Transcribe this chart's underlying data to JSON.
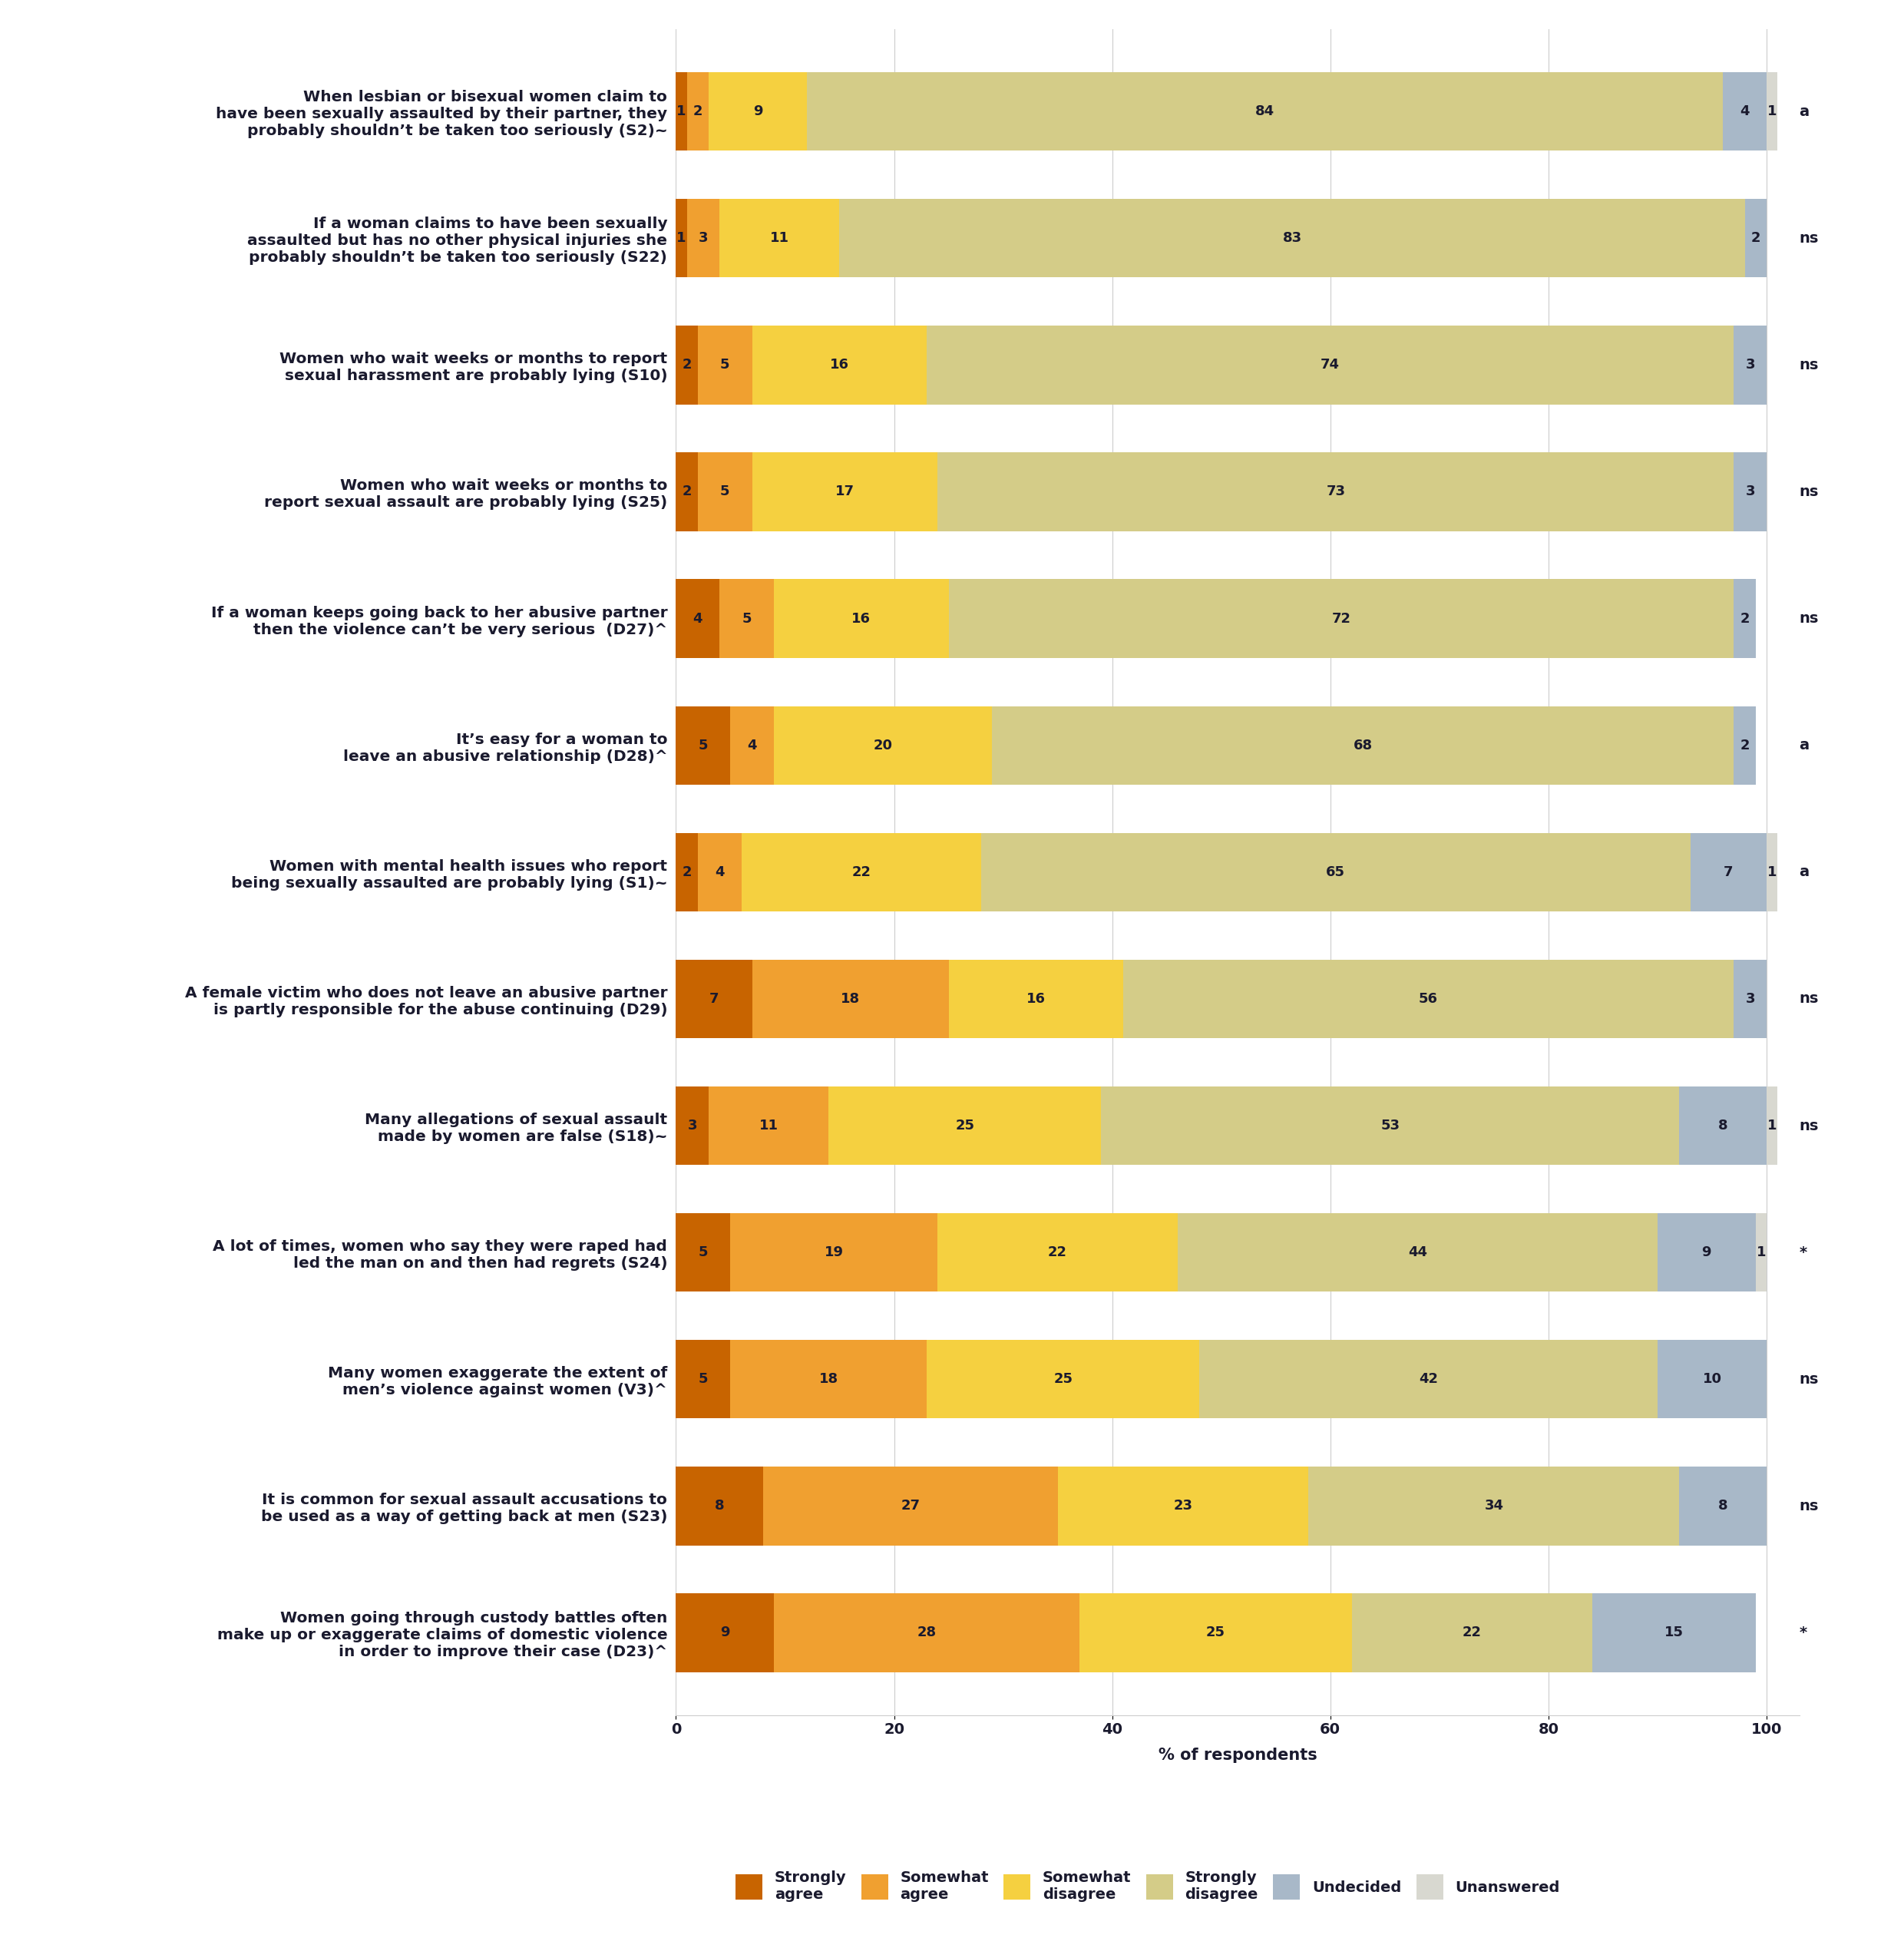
{
  "questions": [
    "When lesbian or bisexual women claim to\nhave been sexually assaulted by their partner, they\nprobably shouldn’t be taken too seriously (S2)~",
    "If a woman claims to have been sexually\nassaulted but has no other physical injuries she\nprobably shouldn’t be taken too seriously (S22)",
    "Women who wait weeks or months to report\nsexual harassment are probably lying (S10)",
    "Women who wait weeks or months to\nreport sexual assault are probably lying (S25)",
    "If a woman keeps going back to her abusive partner\nthen the violence can’t be very serious  (D27)^",
    "It’s easy for a woman to\nleave an abusive relationship (D28)^",
    "Women with mental health issues who report\nbeing sexually assaulted are probably lying (S1)~",
    "A female victim who does not leave an abusive partner\nis partly responsible for the abuse continuing (D29)",
    "Many allegations of sexual assault\nmade by women are false (S18)~",
    "A lot of times, women who say they were raped had\nled the man on and then had regrets (S24)",
    "Many women exaggerate the extent of\nmen’s violence against women (V3)^",
    "It is common for sexual assault accusations to\nbe used as a way of getting back at men (S23)",
    "Women going through custody battles often\nmake up or exaggerate claims of domestic violence\nin order to improve their case (D23)^"
  ],
  "significance": [
    "a",
    "ns",
    "ns",
    "ns",
    "ns",
    "a",
    "a",
    "ns",
    "ns",
    "*",
    "ns",
    "ns",
    "*"
  ],
  "strongly_agree": [
    1,
    1,
    2,
    2,
    4,
    5,
    2,
    7,
    3,
    5,
    5,
    8,
    9
  ],
  "somewhat_agree": [
    2,
    3,
    5,
    5,
    5,
    4,
    4,
    18,
    11,
    19,
    18,
    27,
    28
  ],
  "somewhat_disagree": [
    9,
    11,
    16,
    17,
    16,
    20,
    22,
    16,
    25,
    22,
    25,
    23,
    25
  ],
  "strongly_disagree": [
    84,
    83,
    74,
    73,
    72,
    68,
    65,
    56,
    53,
    44,
    42,
    34,
    22
  ],
  "undecided": [
    4,
    2,
    3,
    3,
    2,
    2,
    7,
    3,
    8,
    9,
    10,
    8,
    15
  ],
  "unanswered": [
    1,
    0,
    0,
    0,
    0,
    0,
    1,
    0,
    1,
    1,
    0,
    0,
    0
  ],
  "colors": {
    "strongly_agree": "#C86400",
    "somewhat_agree": "#F0A030",
    "somewhat_disagree": "#F5D040",
    "strongly_disagree": "#D4CC88",
    "undecided": "#A8B8C8",
    "unanswered": "#D8D8D0"
  },
  "legend_labels": [
    "Strongly\nagree",
    "Somewhat\nagree",
    "Somewhat\ndisagree",
    "Strongly\ndisagree",
    "Undecided",
    "Unanswered"
  ],
  "xlabel": "% of respondents",
  "xlim": [
    0,
    100
  ],
  "xticks": [
    0,
    20,
    40,
    60,
    80,
    100
  ],
  "bar_height": 0.62,
  "background_color": "#FFFFFF",
  "text_color": "#1A1A2E",
  "fontsize_label": 14.5,
  "fontsize_tick": 14,
  "fontsize_bar": 13,
  "fontsize_legend": 14,
  "fontsize_sig": 14,
  "fontsize_xlabel": 15
}
